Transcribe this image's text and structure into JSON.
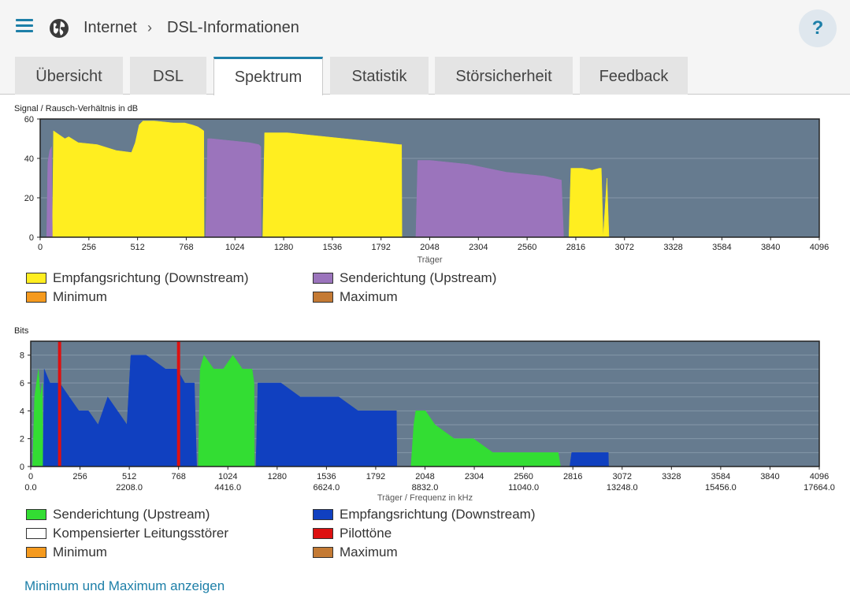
{
  "header": {
    "breadcrumb": [
      "Internet",
      "DSL-Informationen"
    ],
    "help_label": "?"
  },
  "tabs": [
    {
      "label": "Übersicht",
      "active": false
    },
    {
      "label": "DSL",
      "active": false
    },
    {
      "label": "Spektrum",
      "active": true
    },
    {
      "label": "Statistik",
      "active": false
    },
    {
      "label": "Störsicherheit",
      "active": false
    },
    {
      "label": "Feedback",
      "active": false
    }
  ],
  "colors": {
    "plot_bg": "#667b8f",
    "snr_downstream": "#ffee20",
    "snr_upstream": "#9b74bc",
    "bits_upstream": "#33dd33",
    "bits_downstream": "#1040c0",
    "pilot": "#dd1111",
    "minimum": "#f59a1e",
    "maximum": "#c47a34",
    "compensated": "#ffffff"
  },
  "chart_data": [
    {
      "type": "area",
      "title": "Signal / Rausch-Verhältnis in dB",
      "xlabel": "Träger",
      "ylabel": "",
      "xlim": [
        0,
        4096
      ],
      "ylim": [
        0,
        60
      ],
      "xticks": [
        "0",
        "256",
        "512",
        "768",
        "1024",
        "1280",
        "1536",
        "1792",
        "2048",
        "2304",
        "2560",
        "2816",
        "3072",
        "3328",
        "3584",
        "3840",
        "4096"
      ],
      "yticks": [
        "0",
        "20",
        "40",
        "60"
      ],
      "grid": true,
      "legend": [
        {
          "label": "Empfangsrichtung (Downstream)",
          "color": "#ffee20"
        },
        {
          "label": "Senderichtung (Upstream)",
          "color": "#9b74bc"
        },
        {
          "label": "Minimum",
          "color": "#f59a1e"
        },
        {
          "label": "Maximum",
          "color": "#c47a34"
        }
      ],
      "series": [
        {
          "name": "Empfangsrichtung (Downstream)",
          "segments": [
            {
              "x": [
                64,
                70,
                100,
                130,
                150,
                200,
                300,
                400,
                480,
                500,
                520,
                540,
                600,
                700,
                760,
                800,
                830,
                860,
                862
              ],
              "y": [
                0,
                54,
                52,
                50,
                51,
                48,
                47,
                44,
                43,
                48,
                57,
                59,
                59,
                58,
                58,
                57,
                56,
                54,
                0
              ]
            },
            {
              "x": [
                1170,
                1180,
                1300,
                1400,
                1500,
                1600,
                1700,
                1800,
                1890,
                1900,
                1902
              ],
              "y": [
                0,
                53,
                53,
                52,
                51,
                50,
                49,
                48,
                47,
                47,
                0
              ]
            },
            {
              "x": [
                2780,
                2790,
                2850,
                2900,
                2940,
                2950,
                2960,
                2980,
                2990
              ],
              "y": [
                0,
                35,
                35,
                34,
                35,
                35,
                0,
                30,
                0
              ]
            }
          ]
        },
        {
          "name": "Senderichtung (Upstream)",
          "segments": [
            {
              "x": [
                34,
                40,
                50,
                60,
                64
              ],
              "y": [
                0,
                38,
                44,
                46,
                0
              ]
            },
            {
              "x": [
                870,
                880,
                900,
                1000,
                1100,
                1150,
                1160,
                1162
              ],
              "y": [
                0,
                50,
                50,
                49,
                48,
                47,
                46,
                0
              ]
            },
            {
              "x": [
                1975,
                1985,
                2050,
                2150,
                2250,
                2350,
                2450,
                2550,
                2650,
                2740,
                2752
              ],
              "y": [
                0,
                39,
                39,
                38,
                37,
                35,
                33,
                32,
                31,
                29,
                0
              ]
            }
          ]
        }
      ]
    },
    {
      "type": "area",
      "title": "Bits",
      "xlabel": "Träger / Frequenz in kHz",
      "ylabel": "",
      "xlim": [
        0,
        4096
      ],
      "ylim": [
        0,
        9
      ],
      "xticks": [
        "0",
        "256",
        "512",
        "768",
        "1024",
        "1280",
        "1536",
        "1792",
        "2048",
        "2304",
        "2560",
        "2816",
        "3072",
        "3328",
        "3584",
        "3840",
        "4096"
      ],
      "xticks_khz": [
        "0.0",
        "2208.0",
        "4416.0",
        "6624.0",
        "8832.0",
        "11040.0",
        "13248.0",
        "15456.0",
        "17664.0"
      ],
      "yticks": [
        "0",
        "2",
        "4",
        "6",
        "8"
      ],
      "grid": true,
      "legend": [
        {
          "label": "Senderichtung (Upstream)",
          "color": "#33dd33"
        },
        {
          "label": "Empfangsrichtung (Downstream)",
          "color": "#1040c0"
        },
        {
          "label": "Kompensierter Leitungsstörer",
          "color": "#ffffff"
        },
        {
          "label": "Pilottöne",
          "color": "#dd1111"
        },
        {
          "label": "Minimum",
          "color": "#f59a1e"
        },
        {
          "label": "Maximum",
          "color": "#c47a34"
        }
      ],
      "series": [
        {
          "name": "Senderichtung (Upstream)",
          "segments": [
            {
              "x": [
                10,
                20,
                40,
                50,
                60,
                64
              ],
              "y": [
                0,
                5,
                7,
                5,
                6,
                0
              ]
            },
            {
              "x": [
                870,
                880,
                900,
                950,
                1000,
                1050,
                1100,
                1150,
                1160,
                1162
              ],
              "y": [
                0,
                7,
                8,
                7,
                7,
                8,
                7,
                7,
                6,
                0
              ]
            },
            {
              "x": [
                1975,
                1990,
                2000,
                2050,
                2100,
                2200,
                2300,
                2400,
                2500,
                2600,
                2700,
                2740,
                2752
              ],
              "y": [
                0,
                3,
                4,
                4,
                3,
                2,
                2,
                1,
                1,
                1,
                1,
                1,
                0
              ]
            }
          ]
        },
        {
          "name": "Empfangsrichtung (Downstream)",
          "segments": [
            {
              "x": [
                64,
                70,
                100,
                150,
                200,
                250,
                300,
                350,
                400,
                450,
                500,
                520,
                600,
                700,
                760,
                800,
                850,
                862
              ],
              "y": [
                0,
                7,
                6,
                6,
                5,
                4,
                4,
                3,
                5,
                4,
                3,
                8,
                8,
                7,
                7,
                6,
                6,
                0
              ]
            },
            {
              "x": [
                1170,
                1180,
                1300,
                1400,
                1500,
                1600,
                1700,
                1800,
                1900,
                1902
              ],
              "y": [
                0,
                6,
                6,
                5,
                5,
                5,
                4,
                4,
                4,
                0
              ]
            },
            {
              "x": [
                2800,
                2810,
                2900,
                2950,
                3000,
                3002
              ],
              "y": [
                0,
                1,
                1,
                1,
                1,
                0
              ]
            }
          ]
        },
        {
          "name": "Pilottöne",
          "x": [
            150,
            768
          ],
          "y": [
            9,
            9
          ]
        }
      ]
    }
  ],
  "toggle_link": "Minimum und Maximum anzeigen"
}
